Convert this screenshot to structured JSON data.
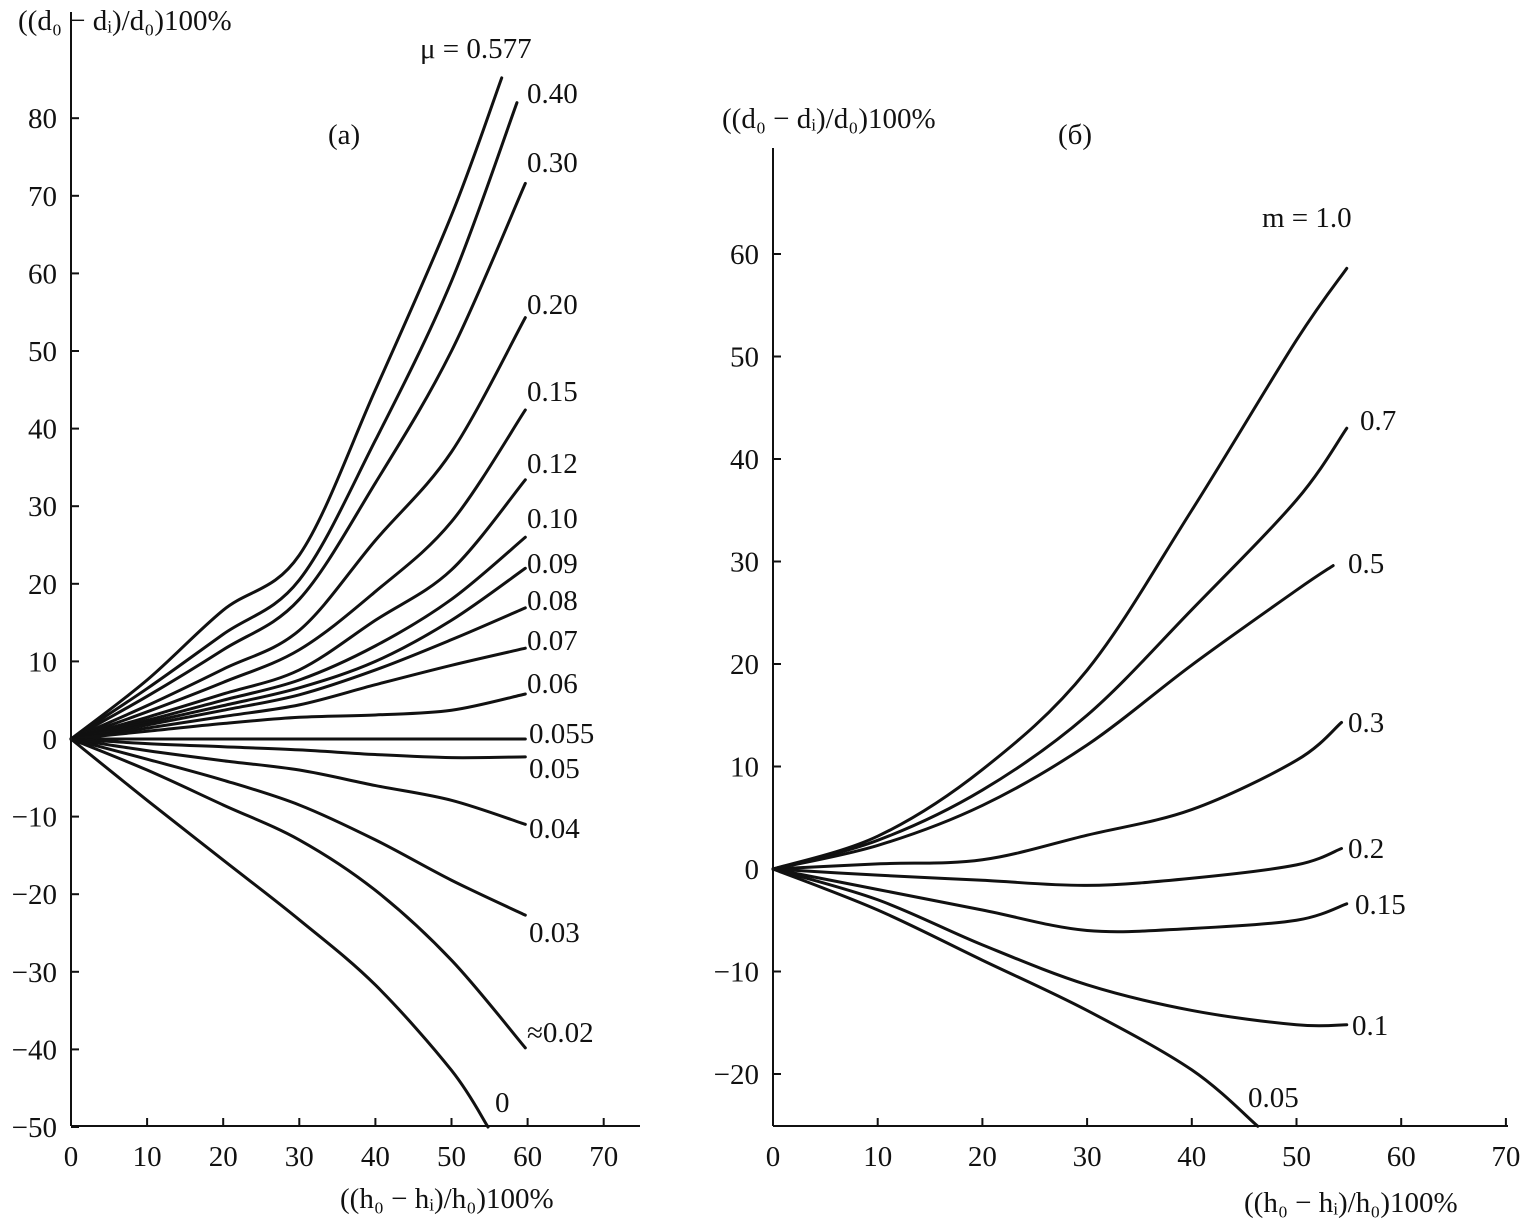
{
  "chart_data": [
    {
      "type": "line",
      "panel_label": "(a)",
      "ylabel": "((d₀ − dᵢ)/d₀)100%",
      "xlabel": "((h₀ − hᵢ)/h₀)100%",
      "xlim": [
        0,
        75
      ],
      "ylim": [
        -50,
        90
      ],
      "xticks": [
        0,
        10,
        20,
        30,
        40,
        50,
        60,
        70
      ],
      "yticks": [
        80,
        70,
        60,
        50,
        40,
        30,
        20,
        10,
        0,
        -10,
        -20,
        -30,
        -40,
        -50
      ],
      "ytick_labels": [
        "80",
        "70",
        "60",
        "50",
        "40",
        "30",
        "20",
        "10",
        "0",
        "−10",
        "−20",
        "−30",
        "−40",
        "−50"
      ],
      "grid": false,
      "series": [
        {
          "name": "μ = 0.577",
          "x": [
            0,
            10,
            20,
            30,
            40,
            50,
            56.6
          ],
          "y": [
            0,
            7.6,
            16.6,
            23.7,
            45,
            67.5,
            85.2
          ]
        },
        {
          "name": "0.40",
          "x": [
            0,
            10,
            20,
            30,
            40,
            50,
            58.6
          ],
          "y": [
            0,
            6.5,
            13.5,
            20.5,
            38.5,
            59,
            82
          ]
        },
        {
          "name": "0.30",
          "x": [
            0,
            10,
            20,
            30,
            40,
            50,
            59.7
          ],
          "y": [
            0,
            5.5,
            11.5,
            18,
            33,
            50,
            71.6
          ]
        },
        {
          "name": "0.20",
          "x": [
            0,
            10,
            20,
            30,
            40,
            50,
            59.7
          ],
          "y": [
            0,
            4.3,
            9,
            14,
            25.6,
            37,
            54.3
          ]
        },
        {
          "name": "0.15",
          "x": [
            0,
            10,
            20,
            30,
            40,
            50,
            59.7
          ],
          "y": [
            0,
            3.5,
            7.3,
            11.5,
            19,
            28,
            42.4
          ]
        },
        {
          "name": "0.12",
          "x": [
            0,
            10,
            20,
            30,
            40,
            50,
            59.7
          ],
          "y": [
            0,
            2.8,
            5.8,
            8.9,
            15.3,
            21.8,
            33.4
          ]
        },
        {
          "name": "0.10",
          "x": [
            0,
            10,
            20,
            30,
            40,
            50,
            59.7
          ],
          "y": [
            0,
            2.4,
            5,
            7.6,
            12,
            18,
            26
          ]
        },
        {
          "name": "0.09",
          "x": [
            0,
            10,
            20,
            30,
            40,
            50,
            59.7
          ],
          "y": [
            0,
            2.1,
            4.3,
            6.6,
            10,
            15.3,
            22
          ]
        },
        {
          "name": "0.08",
          "x": [
            0,
            10,
            20,
            30,
            40,
            50,
            59.7
          ],
          "y": [
            0,
            1.8,
            3.7,
            5.7,
            8.9,
            12.8,
            16.9
          ]
        },
        {
          "name": "0.07",
          "x": [
            0,
            10,
            20,
            30,
            40,
            50,
            59.7
          ],
          "y": [
            0,
            1.4,
            2.9,
            4.4,
            7,
            9.5,
            11.7
          ]
        },
        {
          "name": "0.06",
          "x": [
            0,
            10,
            20,
            30,
            40,
            50,
            59.7
          ],
          "y": [
            0,
            1,
            2,
            2.8,
            3.1,
            3.7,
            5.8
          ]
        },
        {
          "name": "0.055",
          "x": [
            0,
            10,
            20,
            30,
            40,
            50,
            59.7
          ],
          "y": [
            0,
            0,
            0,
            0,
            0,
            0,
            0
          ]
        },
        {
          "name": "0.05",
          "x": [
            0,
            10,
            20,
            30,
            40,
            50,
            59.7
          ],
          "y": [
            0,
            -0.6,
            -1,
            -1.4,
            -2,
            -2.4,
            -2.3
          ]
        },
        {
          "name": "0.04",
          "x": [
            0,
            10,
            20,
            30,
            40,
            50,
            59.7
          ],
          "y": [
            0,
            -1.5,
            -2.8,
            -4,
            -6,
            -7.9,
            -11
          ]
        },
        {
          "name": "0.03",
          "x": [
            0,
            10,
            20,
            30,
            40,
            50,
            59.7
          ],
          "y": [
            0,
            -2.6,
            -5.3,
            -8.5,
            -13,
            -18.2,
            -22.7
          ]
        },
        {
          "name": "≈0.02",
          "x": [
            0,
            10,
            20,
            30,
            40,
            50,
            59.7
          ],
          "y": [
            0,
            -4,
            -8.5,
            -13,
            -19.5,
            -28.5,
            -39.8
          ]
        },
        {
          "name": "0",
          "x": [
            0,
            10,
            20,
            30,
            40,
            50,
            54.8
          ],
          "y": [
            0,
            -7.9,
            -15.6,
            -23.3,
            -31.7,
            -42.7,
            -50
          ]
        }
      ]
    },
    {
      "type": "line",
      "panel_label": "(б)",
      "ylabel": "((d₀ − dᵢ)/d₀)100%",
      "xlabel": "((h₀ − hᵢ)/h₀)100%",
      "xlim": [
        0,
        70
      ],
      "ylim": [
        -25.5,
        70
      ],
      "xticks": [
        0,
        10,
        20,
        30,
        40,
        50,
        60,
        70
      ],
      "yticks": [
        60,
        50,
        40,
        30,
        20,
        10,
        0,
        -10,
        -20
      ],
      "ytick_labels": [
        "60",
        "50",
        "40",
        "30",
        "20",
        "10",
        "0",
        "−10",
        "−20"
      ],
      "grid": false,
      "series": [
        {
          "name": "m = 1.0",
          "x": [
            0,
            10,
            20,
            30,
            40,
            50,
            54.8
          ],
          "y": [
            0,
            3.2,
            9.7,
            19.4,
            35,
            51.6,
            58.6
          ]
        },
        {
          "name": "0.7",
          "x": [
            0,
            10,
            20,
            30,
            40,
            50,
            54.8
          ],
          "y": [
            0,
            2.8,
            7.7,
            15,
            25.3,
            36,
            43
          ]
        },
        {
          "name": "0.5",
          "x": [
            0,
            10,
            20,
            30,
            40,
            50,
            53.5
          ],
          "y": [
            0,
            2.3,
            6.2,
            12.1,
            19.9,
            27.2,
            29.6
          ]
        },
        {
          "name": "0.3",
          "x": [
            0,
            10,
            20,
            30,
            40,
            50,
            54.3
          ],
          "y": [
            0,
            0.5,
            0.9,
            3.3,
            5.8,
            10.6,
            14.3
          ]
        },
        {
          "name": "0.2",
          "x": [
            0,
            10,
            20,
            30,
            40,
            50,
            54.3
          ],
          "y": [
            0,
            -0.6,
            -1.1,
            -1.6,
            -0.9,
            0.4,
            2
          ]
        },
        {
          "name": "0.15",
          "x": [
            0,
            10,
            20,
            30,
            40,
            50,
            54.8
          ],
          "y": [
            0,
            -2,
            -4,
            -6,
            -5.8,
            -5,
            -3.4
          ]
        },
        {
          "name": "0.1",
          "x": [
            0,
            10,
            20,
            30,
            40,
            50,
            54.8
          ],
          "y": [
            0,
            -3,
            -7.4,
            -11.3,
            -13.8,
            -15.2,
            -15.2
          ]
        },
        {
          "name": "0.05",
          "x": [
            0,
            10,
            20,
            30,
            40,
            46.3
          ],
          "y": [
            0,
            -4,
            -8.9,
            -13.8,
            -19.6,
            -25.1
          ]
        }
      ]
    }
  ]
}
